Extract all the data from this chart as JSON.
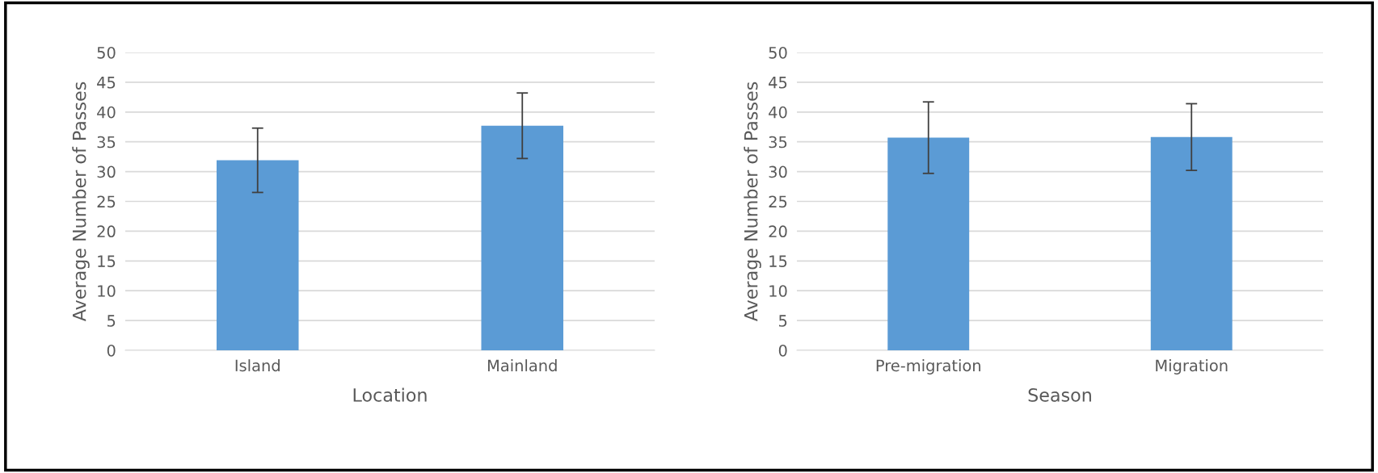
{
  "chart_data": [
    {
      "type": "bar",
      "categories": [
        "Island",
        "Mainland"
      ],
      "values": [
        31.9,
        37.7
      ],
      "errors": [
        5.4,
        5.5
      ],
      "color": "#5b9bd5",
      "xlabel": "Location",
      "ylabel": "Average Number of Passes",
      "ylim": [
        0,
        50
      ],
      "yticks": [
        0,
        5,
        10,
        15,
        20,
        25,
        30,
        35,
        40,
        45,
        50
      ],
      "grid": "y"
    },
    {
      "type": "bar",
      "categories": [
        "Pre-migration",
        "Migration"
      ],
      "values": [
        35.7,
        35.8
      ],
      "errors": [
        6.0,
        5.6
      ],
      "color": "#5b9bd5",
      "xlabel": "Season",
      "ylabel": "Average Number of Passes",
      "ylim": [
        0,
        50
      ],
      "yticks": [
        0,
        5,
        10,
        15,
        20,
        25,
        30,
        35,
        40,
        45,
        50
      ],
      "grid": "y"
    }
  ]
}
